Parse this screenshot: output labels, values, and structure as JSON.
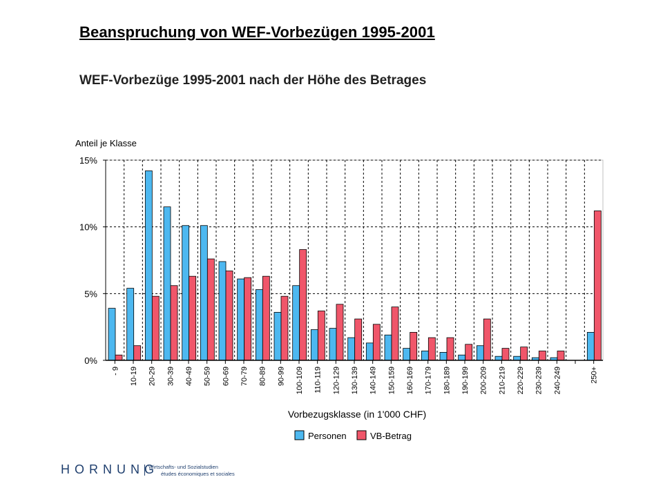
{
  "slide_title": "Beanspruchung von WEF-Vorbezügen 1995-2001",
  "logo": {
    "name": "HORNUNG",
    "line1": "Wirtschafts- und Sozialstudien",
    "line2": "études économiques et sociales",
    "color": "#1f3f6e"
  },
  "chart_data": {
    "type": "bar",
    "title": "WEF-Vorbezüge 1995-2001 nach der Höhe des Betrages",
    "ylabel": "Anteil je Klasse",
    "xlabel": "Vorbezugsklasse (in 1'000 CHF)",
    "ylim": [
      0,
      15
    ],
    "y_ticks": [
      "0%",
      "5%",
      "10%",
      "15%"
    ],
    "y_tick_values": [
      0,
      5,
      10,
      15
    ],
    "grid": true,
    "legend_position": "bottom",
    "categories": [
      "- 9",
      "10-19",
      "20-29",
      "30-39",
      "40-49",
      "50-59",
      "60-69",
      "70-79",
      "80-89",
      "90-99",
      "100-109",
      "110-119",
      "120-129",
      "130-139",
      "140-149",
      "150-159",
      "160-169",
      "170-179",
      "180-189",
      "190-199",
      "200-209",
      "210-219",
      "220-229",
      "230-239",
      "240-249",
      "",
      "250+"
    ],
    "series": [
      {
        "name": "Personen",
        "color": "#4db8f0",
        "values": [
          3.9,
          5.4,
          14.2,
          11.5,
          10.1,
          10.1,
          7.4,
          6.1,
          5.3,
          3.6,
          5.6,
          2.3,
          2.4,
          1.7,
          1.3,
          1.9,
          0.9,
          0.7,
          0.6,
          0.4,
          1.1,
          0.3,
          0.3,
          0.2,
          0.2,
          null,
          2.1
        ]
      },
      {
        "name": "VB-Betrag",
        "color": "#f0566a",
        "values": [
          0.4,
          1.1,
          4.8,
          5.6,
          6.3,
          7.6,
          6.7,
          6.2,
          6.3,
          4.8,
          8.3,
          3.7,
          4.2,
          3.1,
          2.7,
          4.0,
          2.1,
          1.7,
          1.7,
          1.2,
          3.1,
          0.9,
          1.0,
          0.7,
          0.7,
          null,
          11.2
        ]
      }
    ]
  }
}
